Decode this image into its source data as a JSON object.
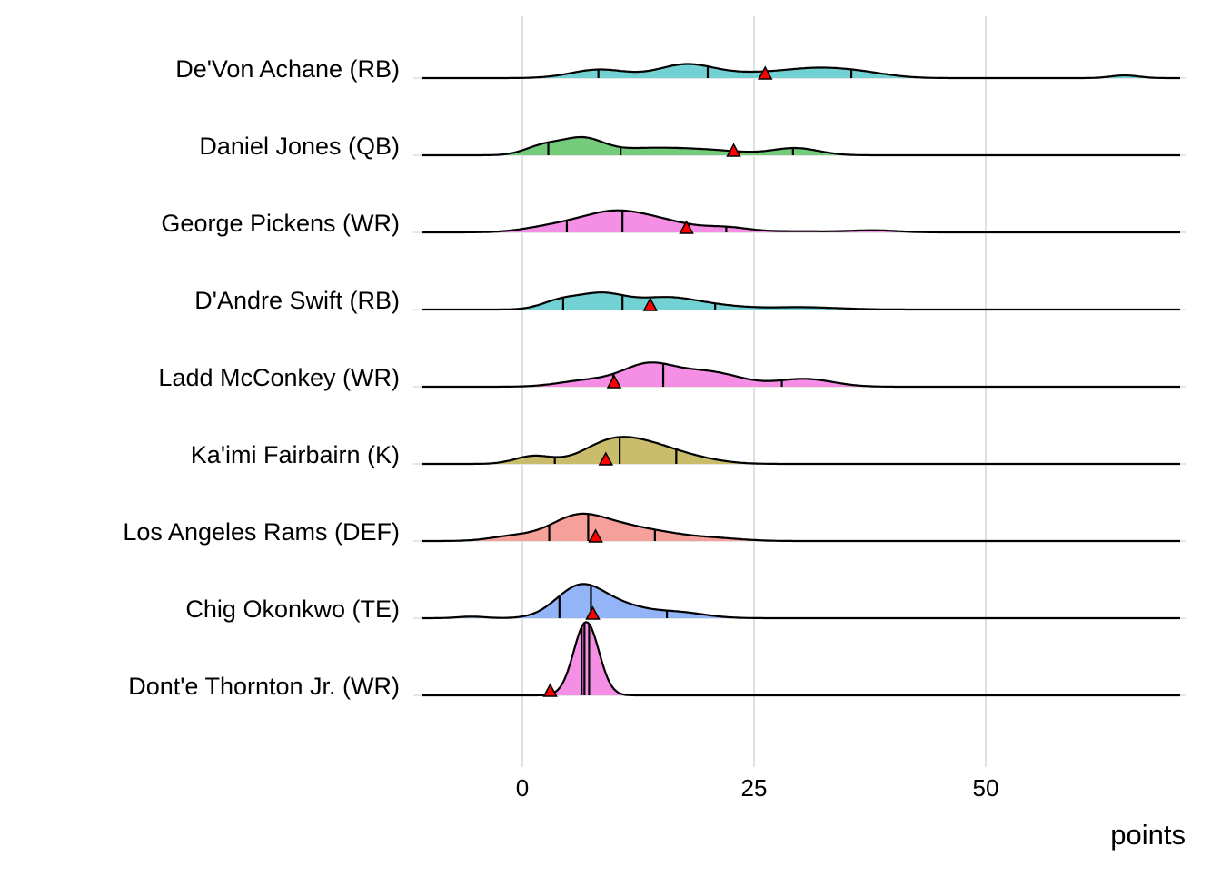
{
  "chart_data": {
    "type": "ridgeline",
    "xlabel": "points",
    "ylabel": "",
    "xlim": [
      -11,
      71
    ],
    "x_ticks": [
      0,
      25,
      50
    ],
    "grid": "vertical major",
    "marker_color": "#ff0000",
    "rows": [
      {
        "label": "De'Von Achane (RB)",
        "color": "#72d1d3",
        "quantiles": [
          8.2,
          20,
          35.5
        ],
        "marker": 26.2,
        "components": [
          [
            8.3,
            3,
            0.11
          ],
          [
            17.6,
            3,
            0.17
          ],
          [
            25,
            4,
            0.06
          ],
          [
            32,
            3.5,
            0.11
          ],
          [
            37,
            3,
            0.05
          ],
          [
            65,
            1.5,
            0.035
          ]
        ]
      },
      {
        "label": "Daniel Jones (QB)",
        "color": "#74cc7a",
        "quantiles": [
          2.8,
          10.6,
          29.2
        ],
        "marker": 22.8,
        "components": [
          [
            2.3,
            2,
            0.12
          ],
          [
            6.5,
            2.2,
            0.2
          ],
          [
            13,
            4,
            0.08
          ],
          [
            20,
            4,
            0.06
          ],
          [
            29.5,
            2.5,
            0.09
          ]
        ]
      },
      {
        "label": "George Pickens (WR)",
        "color": "#f48fe5",
        "quantiles": [
          4.8,
          10.8,
          22
        ],
        "marker": 17.7,
        "components": [
          [
            10,
            3.8,
            0.27
          ],
          [
            3,
            3,
            0.06
          ],
          [
            16,
            3,
            0.08
          ],
          [
            22,
            2.5,
            0.06
          ],
          [
            30,
            4,
            0.015
          ],
          [
            38,
            2.5,
            0.025
          ]
        ]
      },
      {
        "label": "D'Andre Swift (RB)",
        "color": "#72d1d3",
        "quantiles": [
          4.4,
          10.8,
          20.8
        ],
        "marker": 13.8,
        "components": [
          [
            4,
            2,
            0.1
          ],
          [
            8.5,
            2.6,
            0.2
          ],
          [
            15.5,
            3.2,
            0.15
          ],
          [
            21,
            3,
            0.04
          ],
          [
            30,
            4,
            0.03
          ]
        ]
      },
      {
        "label": "Ladd McConkey (WR)",
        "color": "#f48fe5",
        "quantiles": [
          9.8,
          15.2,
          28
        ],
        "marker": 9.9,
        "components": [
          [
            7,
            3,
            0.08
          ],
          [
            13.5,
            2.8,
            0.27
          ],
          [
            20,
            3.5,
            0.19
          ],
          [
            30.5,
            3,
            0.1
          ]
        ]
      },
      {
        "label": "Ka'imi Fairbairn (K)",
        "color": "#c9bc6a",
        "quantiles": [
          3.5,
          10.5,
          16.6
        ],
        "marker": 9.0,
        "components": [
          [
            1.2,
            2,
            0.1
          ],
          [
            9.5,
            3,
            0.27
          ],
          [
            14,
            3,
            0.18
          ],
          [
            18.5,
            3,
            0.06
          ]
        ]
      },
      {
        "label": "Los Angeles Rams (DEF)",
        "color": "#f5a09a",
        "quantiles": [
          2.9,
          7.1,
          14.3
        ],
        "marker": 7.9,
        "components": [
          [
            -1,
            2.5,
            0.06
          ],
          [
            6,
            3,
            0.32
          ],
          [
            11.5,
            3,
            0.15
          ],
          [
            16,
            2.5,
            0.05
          ],
          [
            20.5,
            3,
            0.04
          ]
        ]
      },
      {
        "label": "Chig Okonkwo (TE)",
        "color": "#94b4f8",
        "quantiles": [
          4.0,
          7.4,
          15.6
        ],
        "marker": 7.6,
        "components": [
          [
            6.3,
            2.6,
            0.42
          ],
          [
            11,
            2.5,
            0.12
          ],
          [
            16.5,
            3,
            0.08
          ],
          [
            -5.5,
            1.5,
            0.02
          ]
        ]
      },
      {
        "label": "Dont'e Thornton Jr. (WR)",
        "color": "#f48fe5",
        "quantiles": [
          6.4,
          6.7,
          7.2
        ],
        "marker": 3.0,
        "components": [
          [
            6.9,
            1.35,
            0.95
          ]
        ]
      }
    ]
  }
}
